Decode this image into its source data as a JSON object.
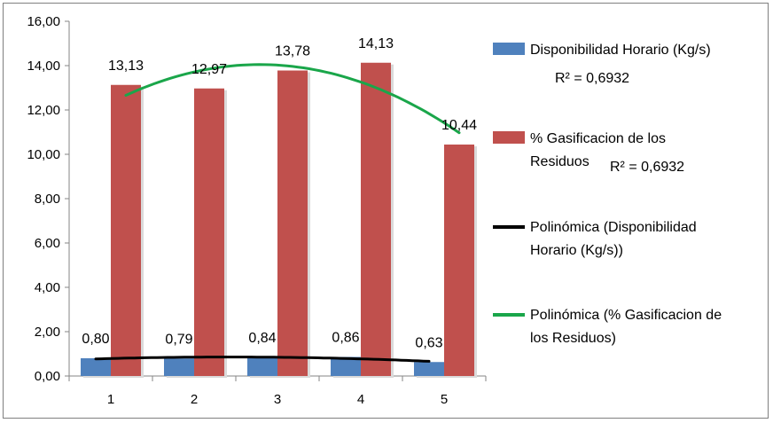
{
  "chart_data": {
    "type": "bar",
    "categories": [
      "1",
      "2",
      "3",
      "4",
      "5"
    ],
    "ylim": [
      0,
      16
    ],
    "yticks": [
      "0,00",
      "2,00",
      "4,00",
      "6,00",
      "8,00",
      "10,00",
      "12,00",
      "14,00",
      "16,00"
    ],
    "grid": false,
    "legend_position": "right",
    "series": [
      {
        "name": "Disponibilidad Horario (Kg/s)",
        "color": "#4f81bd",
        "values": [
          0.8,
          0.79,
          0.84,
          0.86,
          0.63
        ],
        "labels": [
          "0,80",
          "0,79",
          "0,84",
          "0,86",
          "0,63"
        ]
      },
      {
        "name": "% Gasificacion de los Residuos",
        "color": "#c0504d",
        "values": [
          13.13,
          12.97,
          13.78,
          14.13,
          10.44
        ],
        "labels": [
          "13,13",
          "12,97",
          "13,78",
          "14,13",
          "10,44"
        ]
      }
    ],
    "trendlines": [
      {
        "name": "Polinómica (Disponibilidad Horario (Kg/s))",
        "color": "#000000",
        "type": "polynomial",
        "order": 2,
        "series_index": 0,
        "r_squared": "R² = 0,6932"
      },
      {
        "name": "Polinómica (% Gasificacion de los Residuos)",
        "color": "#1aa64a",
        "type": "polynomial",
        "order": 2,
        "series_index": 1,
        "r_squared": "R² = 0,6932"
      }
    ],
    "legend": {
      "entries": [
        {
          "lines": [
            "Disponibilidad Horario (Kg/s)"
          ],
          "marker": "box",
          "color": "#4f81bd"
        },
        {
          "lines": [
            "R² = 0,6932"
          ],
          "marker": "none"
        },
        {
          "lines": [
            "% Gasificacion de los",
            "Residuos"
          ],
          "marker": "box",
          "color": "#c0504d",
          "extra": "R² = 0,6932"
        },
        {
          "lines": [
            "Polinómica (Disponibilidad",
            "Horario (Kg/s))"
          ],
          "marker": "line",
          "color": "#000000"
        },
        {
          "lines": [
            "Polinómica (% Gasificacion de",
            "los Residuos)"
          ],
          "marker": "line",
          "color": "#1aa64a"
        }
      ]
    }
  }
}
